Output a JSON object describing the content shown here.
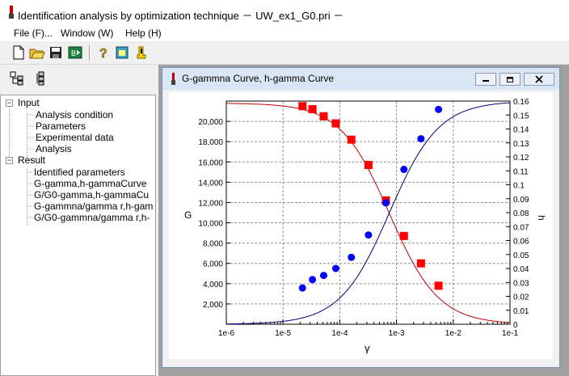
{
  "app": {
    "title": "Identification analysis by optimization technique － UW_ex1_G0.pri －"
  },
  "menu": [
    {
      "label": "File (F)...",
      "underline_key": "F"
    },
    {
      "label": "Window (W)",
      "underline_key": "W"
    },
    {
      "label": "Help (H)",
      "underline_key": "H"
    }
  ],
  "toolbar": {
    "icons": [
      "new-file-icon",
      "open-folder-icon",
      "save-icon",
      "export-icon",
      "help-icon",
      "window-icon",
      "alert-icon"
    ]
  },
  "toolbar2": {
    "icons": [
      "tree-expand-icon",
      "tree-collapse-icon"
    ]
  },
  "tree": {
    "input_label": "Input",
    "input_items": [
      "Analysis condition",
      "Parameters",
      "Experimental data",
      "Analysis"
    ],
    "result_label": "Result",
    "result_items": [
      "Identified parameters",
      "G-gamma,h-gammaCurve",
      "G/G0-gamma,h-gammaCu",
      "G-gammna/gamma r,h-gam",
      "G/G0-gammna/gamma r,h-"
    ]
  },
  "child_window": {
    "title": "G-gammna Curve, h-gamma Curve"
  },
  "chart_data": {
    "type": "scatter",
    "xlabel": "γ",
    "ylabel_left": "G",
    "ylabel_right": "h",
    "x_scale": "log",
    "xlim": [
      1e-06,
      0.1
    ],
    "ylim_left": [
      0,
      22000
    ],
    "ylim_right": [
      0,
      0.16
    ],
    "x_ticks": [
      "1e-6",
      "1e-5",
      "1e-4",
      "1e-3",
      "1e-2",
      "1e-1"
    ],
    "y_left_ticks": [
      "2,000",
      "4,000",
      "6,000",
      "8,000",
      "10,000",
      "12,000",
      "14,000",
      "16,000",
      "18,000",
      "20,000"
    ],
    "y_right_ticks": [
      "0",
      "0.01",
      "0.02",
      "0.03",
      "0.04",
      "0.05",
      "0.06",
      "0.07",
      "0.08",
      "0.09",
      "0.1",
      "0.11",
      "0.12",
      "0.13",
      "0.14",
      "0.15",
      "0.16"
    ],
    "grid": true,
    "colors": {
      "g_series": "#ff0000",
      "g_curve": "#c00000",
      "h_series": "#0000ff",
      "h_curve": "#000080"
    },
    "series": [
      {
        "axis": "left",
        "marker": "square",
        "color": "#ff0000",
        "x": [
          2.2e-05,
          3.3e-05,
          5.2e-05,
          8.5e-05,
          0.00016,
          0.00032,
          0.00065,
          0.00135,
          0.0027,
          0.0055
        ],
        "y": [
          21500,
          21200,
          20500,
          19800,
          18200,
          15700,
          12200,
          8700,
          6000,
          3800
        ]
      },
      {
        "axis": "right",
        "marker": "circle",
        "color": "#0000ff",
        "x": [
          2.2e-05,
          3.3e-05,
          5.2e-05,
          8.5e-05,
          0.00016,
          0.00032,
          0.00065,
          0.00135,
          0.0027,
          0.0055
        ],
        "y": [
          0.026,
          0.032,
          0.035,
          0.04,
          0.048,
          0.064,
          0.087,
          0.111,
          0.133,
          0.154
        ]
      }
    ],
    "curves": [
      {
        "axis": "left",
        "color": "#c00000",
        "model": "G0/(1+gamma/gamma_r)",
        "G0": 21800,
        "gamma_r": 0.00075
      },
      {
        "axis": "right",
        "color": "#000080",
        "model": "hmax*(1-G/G0)",
        "hmax": 0.16,
        "gamma_r": 0.00075
      }
    ]
  }
}
